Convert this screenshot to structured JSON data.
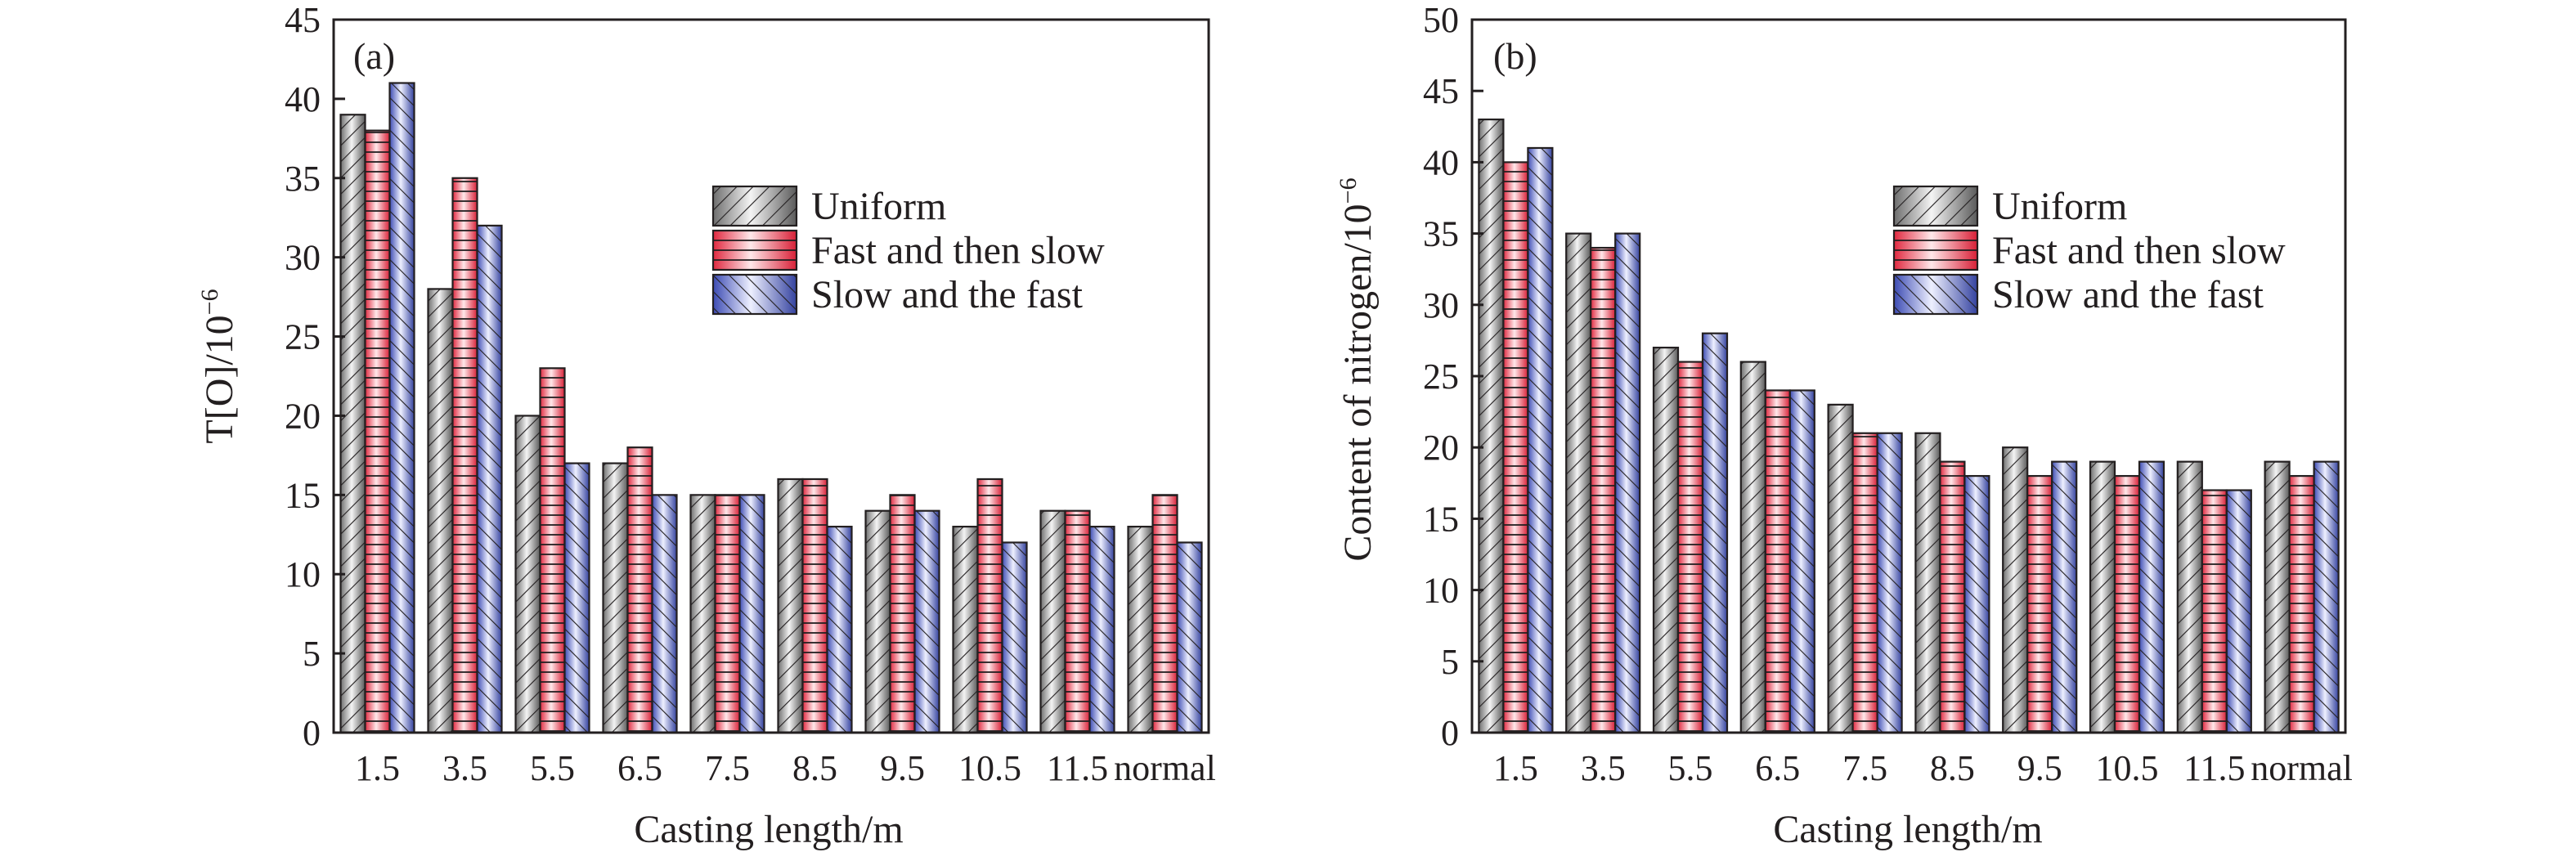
{
  "colors": {
    "uniform": "#8a8a8a",
    "fast_then_slow": "#e8374d",
    "slow_then_fast": "#4a56b8",
    "axis": "#231f20"
  },
  "legend_labels": [
    "Uniform",
    "Fast and then slow",
    "Slow and the fast"
  ],
  "chart_data": [
    {
      "type": "bar",
      "panel_tag": "(a)",
      "xlabel": "Casting length/m",
      "ylabel_main": "T[O]/10",
      "ylabel_sup": "−6",
      "categories": [
        "1.5",
        "3.5",
        "5.5",
        "6.5",
        "7.5",
        "8.5",
        "9.5",
        "10.5",
        "11.5",
        "normal"
      ],
      "ylim": [
        0,
        45
      ],
      "yticks": [
        0,
        5,
        10,
        15,
        20,
        25,
        30,
        35,
        40,
        45
      ],
      "legend_position": "upper-right",
      "series": [
        {
          "name": "Uniform",
          "pattern": "uniform",
          "values": [
            39,
            28,
            20,
            17,
            15,
            16,
            14,
            13,
            14,
            13
          ]
        },
        {
          "name": "Fast and then slow",
          "pattern": "fast_then_slow",
          "values": [
            38,
            35,
            23,
            18,
            15,
            16,
            15,
            16,
            14,
            15
          ]
        },
        {
          "name": "Slow and the fast",
          "pattern": "slow_then_fast",
          "values": [
            41,
            32,
            17,
            15,
            15,
            13,
            14,
            12,
            13,
            12
          ]
        }
      ]
    },
    {
      "type": "bar",
      "panel_tag": "(b)",
      "xlabel": "Casting length/m",
      "ylabel_main": "Content of nitrogen/10",
      "ylabel_sup": "−6",
      "categories": [
        "1.5",
        "3.5",
        "5.5",
        "6.5",
        "7.5",
        "8.5",
        "9.5",
        "10.5",
        "11.5",
        "normal"
      ],
      "ylim": [
        0,
        50
      ],
      "yticks": [
        0,
        5,
        10,
        15,
        20,
        25,
        30,
        35,
        40,
        45,
        50
      ],
      "legend_position": "upper-right",
      "series": [
        {
          "name": "Uniform",
          "pattern": "uniform",
          "values": [
            43,
            35,
            27,
            26,
            23,
            21,
            20,
            19,
            19,
            19
          ]
        },
        {
          "name": "Fast and then slow",
          "pattern": "fast_then_slow",
          "values": [
            40,
            34,
            26,
            24,
            21,
            19,
            18,
            18,
            17,
            18
          ]
        },
        {
          "name": "Slow and the fast",
          "pattern": "slow_then_fast",
          "values": [
            41,
            35,
            28,
            24,
            21,
            18,
            19,
            19,
            17,
            19
          ]
        }
      ]
    }
  ]
}
